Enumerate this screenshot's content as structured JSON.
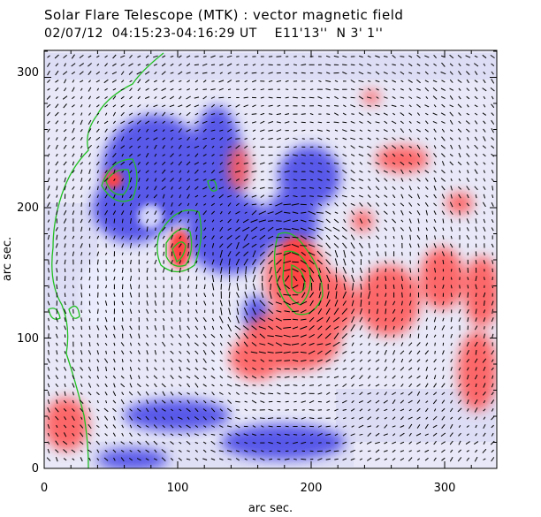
{
  "figure": {
    "title": "Solar Flare Telescope (MTK) : vector magnetic field",
    "subtitle": "02/07/12  04:15:23-04:16:29 UT    E11'13''  N 3' 1''",
    "xlabel": "arc sec.",
    "ylabel": "arc sec.",
    "x_ticks": [
      "0",
      "100",
      "200",
      "300"
    ],
    "y_ticks": [
      "0",
      "100",
      "200",
      "300"
    ],
    "xlim": [
      0,
      340
    ],
    "ylim": [
      0,
      320
    ]
  },
  "colors": {
    "positive_polarity": "#ff5a5a",
    "negative_polarity": "#4a4ae8",
    "contour": "#22c022",
    "vectors": "#000000"
  }
}
